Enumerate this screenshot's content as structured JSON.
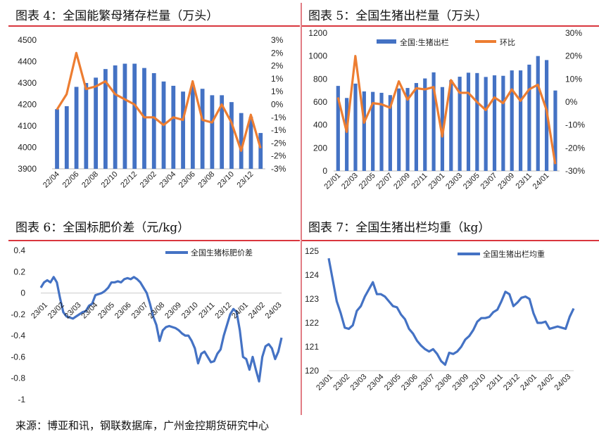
{
  "titles": {
    "fig4": "图表 4：全国能繁母猪存栏量（万头）",
    "fig5": "图表 5：全国生猪出栏量（万头）",
    "fig6": "图表 6：全国标肥价差（元/kg）",
    "fig7": "图表 7：全国生猪出栏均重（kg）"
  },
  "footer": "来源：博亚和讯，钢联数据库，广州金控期货研究中心",
  "colors": {
    "bar": "#4472c4",
    "line_orange": "#ed7d31",
    "line_blue": "#4472c4",
    "accent_red": "#d9363e"
  },
  "chart_data": [
    {
      "id": "fig4",
      "type": "bar+line",
      "categories": [
        "22/04",
        "22/05",
        "22/06",
        "22/07",
        "22/08",
        "22/09",
        "22/10",
        "22/11",
        "22/12",
        "23/01",
        "23/02",
        "23/03",
        "23/04",
        "23/05",
        "23/06",
        "23/07",
        "23/08",
        "23/09",
        "23/10",
        "23/11",
        "23/12",
        "24/01"
      ],
      "tick_labels": [
        "22/04",
        "22/06",
        "22/08",
        "22/10",
        "22/12",
        "23/02",
        "23/04",
        "23/06",
        "23/08",
        "23/10",
        "23/12"
      ],
      "series": [
        {
          "type": "bar",
          "axis": "left",
          "values": [
            4178,
            4192,
            4282,
            4300,
            4325,
            4365,
            4382,
            4390,
            4390,
            4370,
            4346,
            4307,
            4287,
            4260,
            4290,
            4273,
            4243,
            4243,
            4211,
            4160,
            4142,
            4067
          ]
        },
        {
          "type": "line",
          "axis": "right",
          "values": [
            -0.2,
            0.4,
            2.0,
            0.6,
            0.7,
            0.9,
            0.4,
            0.2,
            0.0,
            -0.5,
            -0.5,
            -0.8,
            -0.5,
            -0.6,
            0.9,
            -0.6,
            -0.7,
            0.0,
            -0.7,
            -1.8,
            -0.4,
            -1.7
          ]
        }
      ],
      "ylim": [
        3900,
        4500
      ],
      "yticks": [
        "4500",
        "4400",
        "4300",
        "4200",
        "4100",
        "4000",
        "3900"
      ],
      "y2lim": [
        -2.5,
        2.5
      ],
      "y2ticks": [
        "3%",
        "2%",
        "2%",
        "1%",
        "1%",
        "0%",
        "-1%",
        "-1%",
        "-2%",
        "-2%",
        "-3%"
      ]
    },
    {
      "id": "fig5",
      "type": "bar+line",
      "categories": [
        "22/01",
        "22/02",
        "22/03",
        "22/04",
        "22/05",
        "22/06",
        "22/07",
        "22/08",
        "22/09",
        "22/10",
        "22/11",
        "22/12",
        "23/01",
        "23/02",
        "23/03",
        "23/04",
        "23/05",
        "23/06",
        "23/07",
        "23/08",
        "23/09",
        "23/10",
        "23/11",
        "23/12",
        "24/01",
        "24/02"
      ],
      "tick_labels": [
        "22/01",
        "22/03",
        "22/05",
        "22/07",
        "22/09",
        "22/11",
        "23/01",
        "23/03",
        "23/05",
        "23/07",
        "23/09",
        "23/11",
        "24/01"
      ],
      "legend": [
        "全国:生猪出栏",
        "环比"
      ],
      "legend_position": "top",
      "series": [
        {
          "name": "全国:生猪出栏",
          "type": "bar",
          "axis": "left",
          "values": [
            740,
            635,
            760,
            692,
            688,
            680,
            660,
            718,
            722,
            765,
            805,
            858,
            730,
            790,
            820,
            855,
            852,
            818,
            832,
            828,
            875,
            875,
            925,
            1000,
            965,
            700
          ]
        },
        {
          "name": "环比",
          "type": "line",
          "axis": "right",
          "values": [
            2,
            -13,
            20,
            -9,
            -0.5,
            -1,
            -2.5,
            9,
            1,
            6,
            5.5,
            6.5,
            -15,
            9.5,
            4,
            4,
            0,
            -3.5,
            2,
            -0.5,
            5.5,
            0.5,
            5.5,
            7.5,
            -3.5,
            -27
          ]
        }
      ],
      "ylim": [
        0,
        1200
      ],
      "yticks": [
        "1200",
        "1000",
        "800",
        "600",
        "400",
        "200",
        "0"
      ],
      "y2lim": [
        -30,
        30
      ],
      "y2ticks": [
        "30%",
        "20%",
        "10%",
        "0%",
        "-10%",
        "-20%",
        "-30%"
      ]
    },
    {
      "id": "fig6",
      "type": "line",
      "tick_labels": [
        "23/01",
        "23/02",
        "23/03",
        "23/04",
        "23/05",
        "23/06",
        "23/07",
        "23/08",
        "23/09",
        "23/10",
        "23/11",
        "23/12",
        "24/01",
        "24/02",
        "24/03"
      ],
      "legend": [
        "全国生猪标肥价差"
      ],
      "legend_position": "top-right",
      "series": [
        {
          "name": "全国生猪标肥价差",
          "values": [
            0.05,
            0.1,
            0.12,
            0.1,
            0.15,
            0.1,
            -0.05,
            -0.18,
            -0.22,
            -0.23,
            -0.24,
            -0.22,
            -0.2,
            -0.18,
            -0.17,
            -0.12,
            -0.1,
            -0.02,
            -0.01,
            0.0,
            0.02,
            0.05,
            0.1,
            0.1,
            0.11,
            0.1,
            0.13,
            0.14,
            0.13,
            0.15,
            0.13,
            0.1,
            0.05,
            0.0,
            -0.1,
            -0.22,
            -0.3,
            -0.45,
            -0.35,
            -0.32,
            -0.31,
            -0.32,
            -0.33,
            -0.35,
            -0.38,
            -0.4,
            -0.4,
            -0.45,
            -0.52,
            -0.66,
            -0.57,
            -0.55,
            -0.6,
            -0.65,
            -0.64,
            -0.57,
            -0.53,
            -0.4,
            -0.3,
            -0.2,
            -0.15,
            -0.18,
            -0.35,
            -0.6,
            -0.62,
            -0.72,
            -0.6,
            -0.72,
            -0.83,
            -0.6,
            -0.5,
            -0.48,
            -0.52,
            -0.62,
            -0.55,
            -0.42
          ]
        }
      ],
      "ylim": [
        -1,
        0.4
      ],
      "yticks": [
        "0.4",
        "0.2",
        "0",
        "-0.2",
        "-0.4",
        "-0.6",
        "-0.8",
        "-1"
      ]
    },
    {
      "id": "fig7",
      "type": "line",
      "tick_labels": [
        "23/01",
        "23/02",
        "23/03",
        "23/04",
        "23/05",
        "23/06",
        "23/07",
        "23/08",
        "23/09",
        "23/10",
        "23/11",
        "23/12",
        "24/01",
        "24/02",
        "24/03"
      ],
      "legend": [
        "全国生猪出栏均重"
      ],
      "legend_position": "top-right",
      "series": [
        {
          "name": "全国生猪出栏均重",
          "values": [
            124.7,
            123.8,
            122.9,
            122.4,
            121.8,
            121.75,
            121.9,
            122.5,
            122.7,
            123.1,
            123.4,
            123.7,
            123.2,
            123.2,
            123.1,
            122.9,
            122.7,
            122.65,
            122.35,
            122.15,
            121.75,
            121.55,
            121.25,
            121.05,
            120.9,
            120.8,
            120.9,
            120.7,
            120.4,
            120.25,
            120.75,
            120.7,
            120.8,
            121.0,
            121.3,
            121.45,
            121.7,
            122.05,
            122.2,
            122.2,
            122.25,
            122.45,
            122.55,
            122.9,
            123.3,
            123.2,
            122.7,
            122.85,
            123.05,
            123.1,
            123.0,
            122.4,
            122.0,
            122.0,
            122.05,
            121.75,
            121.8,
            121.85,
            121.8,
            121.75,
            122.25,
            122.6
          ]
        }
      ],
      "ylim": [
        120,
        125
      ],
      "yticks": [
        "125",
        "124",
        "123",
        "122",
        "121",
        "120"
      ]
    }
  ]
}
